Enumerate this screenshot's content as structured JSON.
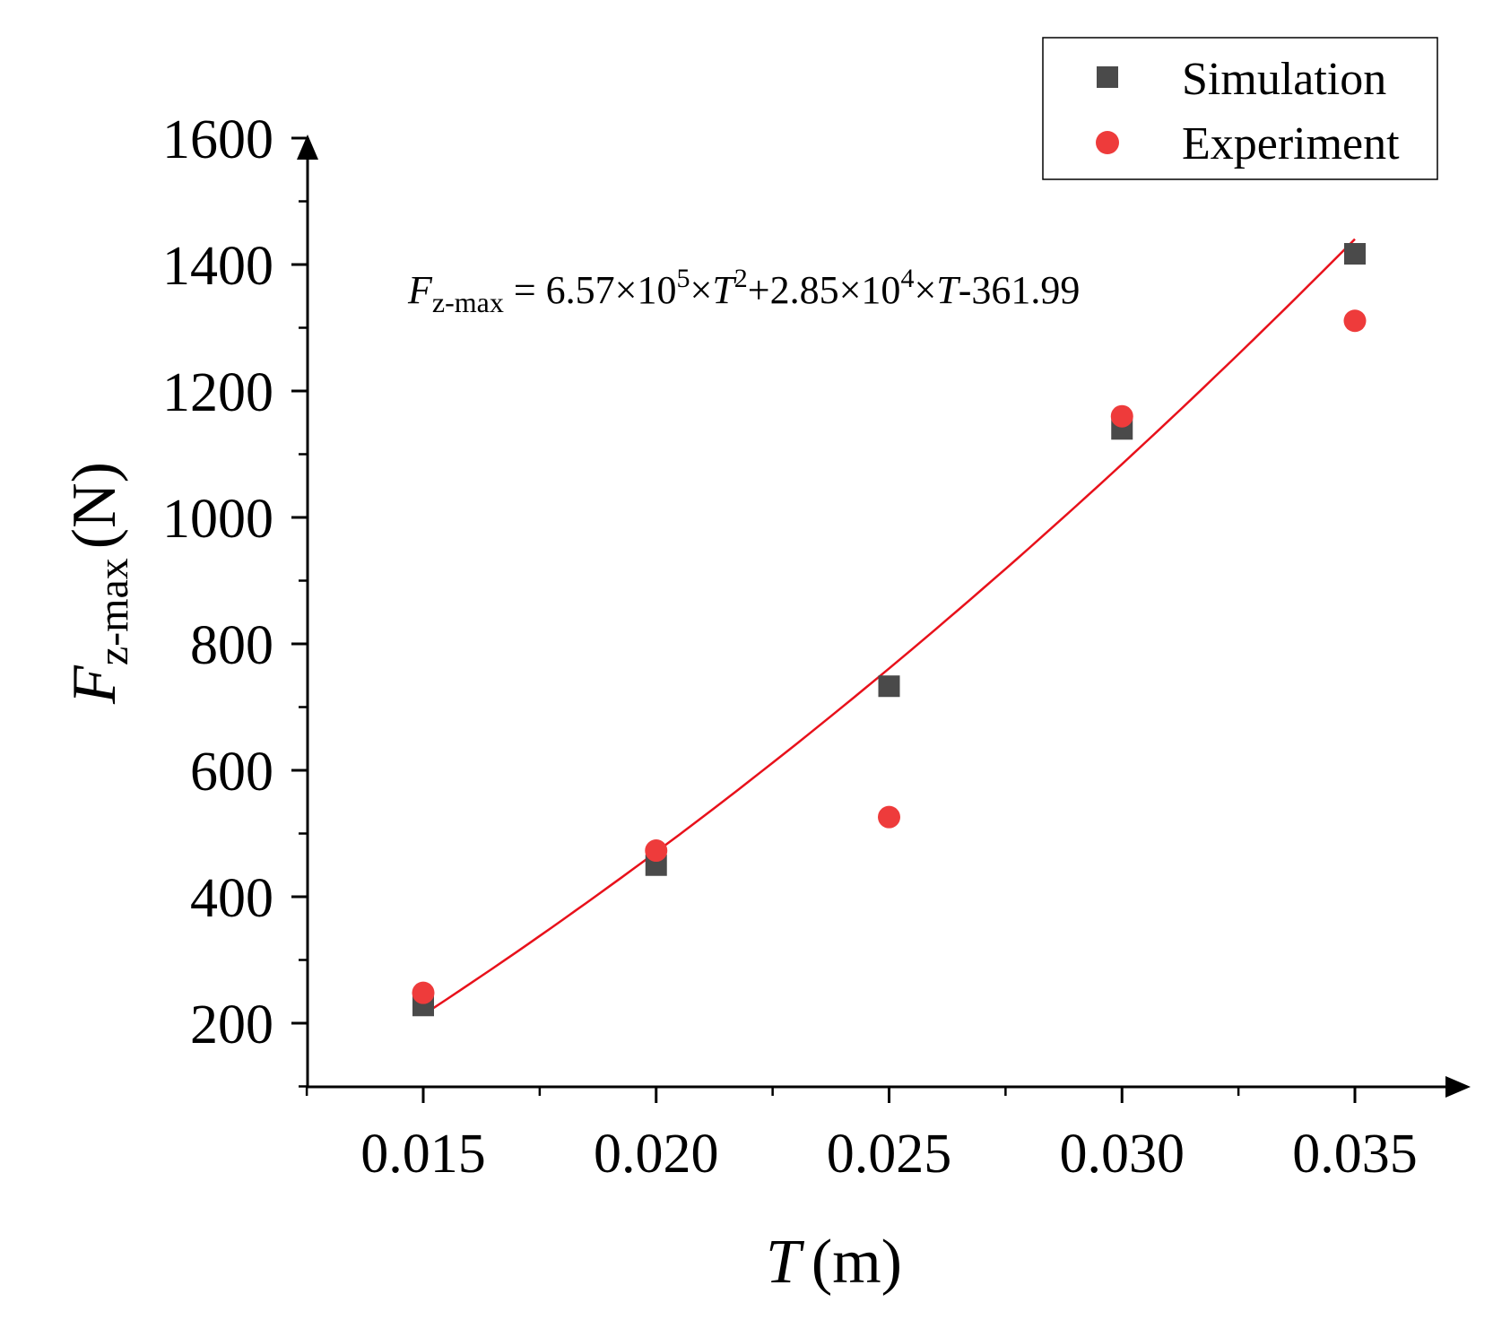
{
  "chart_data": {
    "type": "scatter",
    "title": "",
    "xlabel": {
      "var": "T",
      "unit": "(m)"
    },
    "ylabel": {
      "var": "F",
      "sub": "z-max",
      "unit": "(N)"
    },
    "xlim": [
      0.0125,
      0.0375
    ],
    "ylim": [
      100,
      1600
    ],
    "xticks": [
      0.015,
      0.02,
      0.025,
      0.03,
      0.035
    ],
    "xtick_labels": [
      "0.015",
      "0.020",
      "0.025",
      "0.030",
      "0.035"
    ],
    "xminor": [
      0.0125,
      0.0175,
      0.0225,
      0.0275,
      0.0325
    ],
    "yticks": [
      200,
      400,
      600,
      800,
      1000,
      1200,
      1400,
      1600
    ],
    "ytick_labels": [
      "200",
      "400",
      "600",
      "800",
      "1000",
      "1200",
      "1400",
      "1600"
    ],
    "yminor": [
      100,
      300,
      500,
      700,
      900,
      1100,
      1300,
      1500
    ],
    "series": [
      {
        "name": "Simulation",
        "marker": "square",
        "color": "#4a4a4a",
        "x": [
          0.015,
          0.02,
          0.025,
          0.03,
          0.035
        ],
        "y": [
          228,
          450,
          733,
          1140,
          1417
        ]
      },
      {
        "name": "Experiment",
        "marker": "circle",
        "color": "#ee3b3b",
        "x": [
          0.015,
          0.02,
          0.025,
          0.03,
          0.035
        ],
        "y": [
          248,
          473,
          526,
          1160,
          1311
        ]
      }
    ],
    "fit": {
      "color": "#e8111b",
      "coefficients": {
        "a": 657000,
        "b": 28500,
        "c": -361.99
      },
      "x_range": [
        0.015,
        0.035
      ],
      "equation": {
        "lhs_var": "F",
        "lhs_sub": "z-max",
        "eq": " = 6.57×10",
        "exp1": "5",
        "t1": "×",
        "var1": "T",
        "exp2": "2",
        "t2": "+2.85×10",
        "exp3": "4",
        "t3": "×",
        "var2": "T",
        "t4": "-361.99"
      }
    },
    "legend": {
      "position": "top-right",
      "entries": [
        "Simulation",
        "Experiment"
      ]
    }
  }
}
